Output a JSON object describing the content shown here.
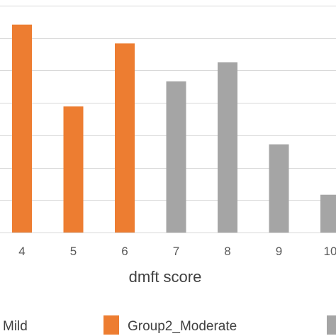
{
  "chart_data": {
    "type": "bar",
    "categories": [
      "4",
      "5",
      "6",
      "7",
      "8",
      "9",
      "10"
    ],
    "values": [
      6.6,
      4.0,
      6.0,
      4.8,
      5.4,
      2.8,
      1.2
    ],
    "bar_series": [
      "Group2_Moderate",
      "Group2_Moderate",
      "Group2_Moderate",
      "other",
      "other",
      "other",
      "other"
    ],
    "series": [
      {
        "name": "Mild",
        "color": "#a5a5a5"
      },
      {
        "name": "Group2_Moderate",
        "color": "#ed7d31"
      },
      {
        "name": "",
        "color": "#a5a5a5"
      }
    ],
    "colors": {
      "Group2_Moderate": "#ed7d31",
      "other": "#a5a5a5"
    },
    "xlabel": "dmft score",
    "ylabel": "",
    "ylim": [
      0,
      7.2
    ],
    "grid": true,
    "legend_position": "bottom"
  }
}
